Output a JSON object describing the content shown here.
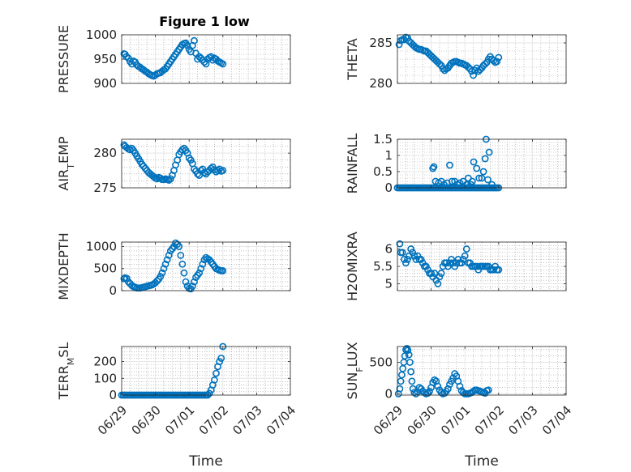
{
  "figure_title": "Figure 1 low",
  "x_ticks": [
    "06/29",
    "06/30",
    "07/01",
    "07/02",
    "07/03",
    "07/04"
  ],
  "x_label": "Time",
  "colors": {
    "marker": "#0072BD",
    "axis": "#262626",
    "grid": "#e6e6e6",
    "minorgrid": "#9a9a9a"
  },
  "chart_data": [
    {
      "type": "scatter",
      "ylabel": "PRESSURE",
      "ylabel_sub": "",
      "ylabel_post": "",
      "ylim": [
        900,
        1000
      ],
      "yticks": [
        900,
        950,
        1000
      ],
      "grid": true,
      "x": [
        0.07,
        0.1,
        0.14,
        0.2,
        0.25,
        0.3,
        0.35,
        0.4,
        0.45,
        0.5,
        0.55,
        0.6,
        0.65,
        0.7,
        0.75,
        0.8,
        0.85,
        0.9,
        0.95,
        1.0,
        1.05,
        1.1,
        1.15,
        1.2,
        1.25,
        1.3,
        1.35,
        1.4,
        1.45,
        1.5,
        1.55,
        1.6,
        1.65,
        1.7,
        1.75,
        1.8,
        1.85,
        1.9,
        1.95,
        2.0,
        2.05,
        2.1,
        2.15,
        2.2,
        2.25,
        2.3,
        2.35,
        2.4,
        2.45,
        2.5,
        2.55,
        2.6,
        2.65,
        2.7,
        2.75,
        2.8,
        2.85,
        2.9,
        2.95,
        3.0
      ],
      "y": [
        961,
        960,
        955,
        952,
        945,
        940,
        946,
        944,
        938,
        935,
        933,
        930,
        928,
        925,
        923,
        920,
        918,
        916,
        915,
        917,
        920,
        921,
        922,
        925,
        928,
        930,
        935,
        940,
        945,
        950,
        955,
        960,
        965,
        970,
        975,
        980,
        982,
        983,
        978,
        970,
        965,
        978,
        988,
        962,
        950,
        955,
        952,
        948,
        944,
        940,
        950,
        953,
        955,
        948,
        952,
        950,
        946,
        944,
        942,
        940
      ]
    },
    {
      "type": "scatter",
      "ylabel": "THETA",
      "ylabel_sub": "",
      "ylabel_post": "",
      "ylim": [
        280,
        286
      ],
      "yticks": [
        280,
        285
      ],
      "grid": true,
      "x": [
        0.05,
        0.1,
        0.15,
        0.2,
        0.25,
        0.3,
        0.35,
        0.4,
        0.45,
        0.5,
        0.55,
        0.6,
        0.65,
        0.7,
        0.75,
        0.8,
        0.85,
        0.9,
        0.95,
        1.0,
        1.05,
        1.1,
        1.15,
        1.2,
        1.25,
        1.3,
        1.35,
        1.4,
        1.45,
        1.5,
        1.55,
        1.6,
        1.65,
        1.7,
        1.75,
        1.8,
        1.85,
        1.9,
        1.95,
        2.0,
        2.05,
        2.1,
        2.15,
        2.2,
        2.25,
        2.3,
        2.35,
        2.4,
        2.45,
        2.5,
        2.55,
        2.6,
        2.65,
        2.7,
        2.75,
        2.8,
        2.85,
        2.9,
        2.95,
        3.0
      ],
      "y": [
        284.8,
        285.3,
        285.4,
        285.4,
        285.7,
        285.6,
        285.2,
        285.0,
        284.8,
        284.6,
        284.4,
        284.3,
        284.2,
        284.2,
        284.1,
        284.0,
        284.0,
        283.8,
        283.6,
        283.4,
        283.2,
        283.0,
        282.8,
        282.6,
        282.4,
        282.2,
        281.8,
        281.6,
        281.8,
        281.9,
        282.2,
        282.5,
        282.6,
        282.7,
        282.7,
        282.6,
        282.5,
        282.5,
        282.4,
        282.3,
        282.2,
        282.0,
        281.8,
        281.5,
        281.0,
        281.6,
        281.9,
        281.5,
        281.7,
        281.9,
        282.2,
        282.4,
        282.6,
        283.0,
        283.3,
        283.0,
        282.8,
        282.6,
        282.7,
        283.2
      ]
    },
    {
      "type": "scatter",
      "ylabel": "AIR",
      "ylabel_sub": "T",
      "ylabel_post": "EMP",
      "ylim": [
        275,
        282
      ],
      "yticks": [
        275,
        280
      ],
      "grid": true,
      "x": [
        0.07,
        0.1,
        0.15,
        0.2,
        0.25,
        0.3,
        0.35,
        0.4,
        0.45,
        0.5,
        0.55,
        0.6,
        0.65,
        0.7,
        0.75,
        0.8,
        0.85,
        0.9,
        0.95,
        1.0,
        1.05,
        1.1,
        1.15,
        1.2,
        1.25,
        1.3,
        1.35,
        1.4,
        1.45,
        1.5,
        1.55,
        1.6,
        1.65,
        1.7,
        1.75,
        1.8,
        1.85,
        1.9,
        1.95,
        2.0,
        2.05,
        2.1,
        2.15,
        2.2,
        2.25,
        2.3,
        2.35,
        2.4,
        2.45,
        2.5,
        2.55,
        2.6,
        2.65,
        2.7,
        2.75,
        2.8,
        2.85,
        2.9,
        2.95,
        3.0
      ],
      "y": [
        281.2,
        281.0,
        280.8,
        280.6,
        280.5,
        280.7,
        280.4,
        280.0,
        279.6,
        279.2,
        278.8,
        278.4,
        278.1,
        277.8,
        277.5,
        277.2,
        277.0,
        276.8,
        276.6,
        276.4,
        276.3,
        276.5,
        276.4,
        276.2,
        276.2,
        276.3,
        276.2,
        276.1,
        276.3,
        276.8,
        277.5,
        278.3,
        279.0,
        279.8,
        280.2,
        280.5,
        280.7,
        280.4,
        280.0,
        279.3,
        279.0,
        278.5,
        277.7,
        277.4,
        277.0,
        276.8,
        277.5,
        277.7,
        277.2,
        277.0,
        277.3,
        277.5,
        277.8,
        278.0,
        277.6,
        277.3,
        277.5,
        277.7,
        277.4,
        277.5
      ]
    },
    {
      "type": "scatter",
      "ylabel": "RAINFALL",
      "ylabel_sub": "",
      "ylabel_post": "",
      "ylim": [
        0,
        1.5
      ],
      "yticks": [
        0,
        0.5,
        1,
        1.5
      ],
      "ytick_labels": [
        "0",
        "0.5",
        "1",
        "1.5"
      ],
      "grid": true,
      "x": [
        0.0,
        0.05,
        0.1,
        0.15,
        0.2,
        0.25,
        0.3,
        0.35,
        0.4,
        0.45,
        0.5,
        0.55,
        0.6,
        0.65,
        0.7,
        0.75,
        0.8,
        0.85,
        0.9,
        0.95,
        1.0,
        1.05,
        1.1,
        1.15,
        1.2,
        1.25,
        1.3,
        1.35,
        1.4,
        1.45,
        1.5,
        1.55,
        1.6,
        1.65,
        1.7,
        1.75,
        1.8,
        1.85,
        1.9,
        1.95,
        2.0,
        2.05,
        2.1,
        2.15,
        2.2,
        2.25,
        2.3,
        2.35,
        2.4,
        2.45,
        2.5,
        2.55,
        2.6,
        2.65,
        2.7,
        2.75,
        2.8,
        2.85,
        2.9,
        2.95,
        3.0,
        1.05,
        1.08,
        1.13,
        1.22,
        1.3,
        1.38,
        1.47,
        1.55,
        1.62,
        1.7,
        1.78,
        1.85,
        1.95,
        2.05,
        2.1,
        2.18,
        2.22,
        2.26,
        2.35,
        2.42,
        2.5,
        2.55,
        2.6,
        2.63,
        2.68,
        2.72,
        2.8
      ],
      "y": [
        0,
        0,
        0,
        0,
        0,
        0,
        0,
        0,
        0,
        0,
        0,
        0,
        0,
        0,
        0,
        0,
        0,
        0,
        0,
        0,
        0,
        0,
        0,
        0,
        0,
        0,
        0,
        0,
        0,
        0,
        0,
        0,
        0,
        0,
        0,
        0,
        0,
        0,
        0,
        0,
        0,
        0,
        0,
        0,
        0,
        0,
        0,
        0,
        0,
        0,
        0,
        0,
        0,
        0,
        0,
        0,
        0,
        0,
        0,
        0,
        0,
        0.6,
        0.65,
        0.2,
        0.15,
        0.2,
        0.1,
        0.15,
        0.7,
        0.2,
        0.2,
        0.1,
        0.15,
        0.2,
        0.1,
        0.3,
        0.1,
        0.2,
        0.8,
        0.6,
        0.3,
        0.3,
        0.5,
        0.9,
        1.5,
        0.25,
        1.1,
        0.1
      ]
    },
    {
      "type": "scatter",
      "ylabel": "MIXDEPTH",
      "ylabel_sub": "",
      "ylabel_post": "",
      "ylim": [
        0,
        1100
      ],
      "yticks": [
        0,
        500,
        1000
      ],
      "grid": true,
      "x": [
        0.07,
        0.1,
        0.15,
        0.2,
        0.25,
        0.3,
        0.35,
        0.4,
        0.45,
        0.5,
        0.55,
        0.6,
        0.65,
        0.7,
        0.75,
        0.8,
        0.85,
        0.9,
        0.95,
        1.0,
        1.05,
        1.1,
        1.15,
        1.2,
        1.25,
        1.3,
        1.35,
        1.4,
        1.45,
        1.5,
        1.55,
        1.6,
        1.65,
        1.7,
        1.75,
        1.8,
        1.85,
        1.9,
        1.95,
        2.0,
        2.05,
        2.1,
        2.15,
        2.2,
        2.25,
        2.3,
        2.35,
        2.4,
        2.45,
        2.5,
        2.55,
        2.6,
        2.65,
        2.7,
        2.75,
        2.8,
        2.85,
        2.9,
        2.95,
        3.0
      ],
      "y": [
        270,
        290,
        280,
        200,
        160,
        120,
        90,
        80,
        60,
        60,
        60,
        70,
        80,
        90,
        100,
        110,
        120,
        130,
        150,
        180,
        220,
        260,
        320,
        400,
        500,
        600,
        700,
        800,
        900,
        950,
        1000,
        1080,
        1050,
        1000,
        800,
        600,
        400,
        200,
        100,
        50,
        40,
        100,
        200,
        300,
        350,
        400,
        500,
        600,
        700,
        750,
        720,
        700,
        650,
        600,
        550,
        500,
        480,
        460,
        450,
        450
      ]
    },
    {
      "type": "scatter",
      "ylabel": "H2OMIXRA",
      "ylabel_sub": "",
      "ylabel_post": "",
      "ylim": [
        4.8,
        6.2
      ],
      "yticks": [
        5,
        5.5,
        6
      ],
      "ytick_labels": [
        "5",
        "5.5",
        "6"
      ],
      "grid": true,
      "x": [
        0.07,
        0.1,
        0.15,
        0.2,
        0.25,
        0.3,
        0.35,
        0.4,
        0.45,
        0.5,
        0.55,
        0.6,
        0.65,
        0.7,
        0.75,
        0.8,
        0.85,
        0.9,
        0.95,
        1.0,
        1.05,
        1.1,
        1.15,
        1.2,
        1.25,
        1.3,
        1.35,
        1.4,
        1.45,
        1.5,
        1.55,
        1.6,
        1.65,
        1.7,
        1.75,
        1.8,
        1.85,
        1.9,
        1.95,
        2.0,
        2.05,
        2.1,
        2.15,
        2.2,
        2.25,
        2.3,
        2.35,
        2.4,
        2.45,
        2.5,
        2.55,
        2.6,
        2.65,
        2.7,
        2.75,
        2.8,
        2.85,
        2.9,
        2.95,
        3.0
      ],
      "y": [
        6.15,
        5.9,
        5.9,
        5.7,
        5.6,
        5.7,
        5.8,
        6.0,
        5.9,
        5.8,
        5.7,
        5.8,
        5.7,
        5.7,
        5.6,
        5.5,
        5.5,
        5.4,
        5.3,
        5.3,
        5.2,
        5.3,
        5.1,
        5.0,
        5.2,
        5.3,
        5.5,
        5.6,
        5.6,
        5.5,
        5.6,
        5.7,
        5.6,
        5.5,
        5.6,
        5.7,
        5.6,
        5.6,
        5.7,
        5.8,
        6.0,
        5.6,
        5.6,
        5.5,
        5.5,
        5.5,
        5.5,
        5.4,
        5.5,
        5.5,
        5.5,
        5.5,
        5.5,
        5.5,
        5.4,
        5.4,
        5.4,
        5.5,
        5.4,
        5.4
      ]
    },
    {
      "type": "scatter",
      "ylabel": "TERR",
      "ylabel_sub": "M",
      "ylabel_post": "SL",
      "ylim": [
        0,
        290
      ],
      "yticks": [
        0,
        100,
        200
      ],
      "grid": true,
      "x": [
        0.0,
        0.05,
        0.1,
        0.15,
        0.2,
        0.25,
        0.3,
        0.35,
        0.4,
        0.45,
        0.5,
        0.55,
        0.6,
        0.65,
        0.7,
        0.75,
        0.8,
        0.85,
        0.9,
        0.95,
        1.0,
        1.05,
        1.1,
        1.15,
        1.2,
        1.25,
        1.3,
        1.35,
        1.4,
        1.45,
        1.5,
        1.55,
        1.6,
        1.65,
        1.7,
        1.75,
        1.8,
        1.85,
        1.9,
        1.95,
        2.0,
        2.05,
        2.1,
        2.15,
        2.2,
        2.25,
        2.3,
        2.35,
        2.4,
        2.45,
        2.5,
        2.55,
        2.6,
        2.65,
        2.7,
        2.75,
        2.8,
        2.85,
        2.9,
        2.95,
        3.0
      ],
      "y": [
        0,
        0,
        0,
        0,
        0,
        0,
        0,
        0,
        0,
        0,
        0,
        0,
        0,
        0,
        0,
        0,
        0,
        0,
        0,
        0,
        0,
        0,
        0,
        0,
        0,
        0,
        0,
        0,
        0,
        0,
        0,
        0,
        0,
        0,
        0,
        0,
        0,
        0,
        0,
        0,
        0,
        0,
        0,
        0,
        0,
        0,
        0,
        0,
        0,
        0,
        0,
        0,
        10,
        30,
        60,
        90,
        130,
        170,
        200,
        220,
        290
      ]
    },
    {
      "type": "scatter",
      "ylabel": "SUN",
      "ylabel_sub": "F",
      "ylabel_post": "LUX",
      "ylim": [
        -20,
        750
      ],
      "yticks": [
        0,
        500
      ],
      "grid": true,
      "x": [
        0.03,
        0.07,
        0.1,
        0.13,
        0.16,
        0.19,
        0.22,
        0.25,
        0.28,
        0.31,
        0.34,
        0.37,
        0.4,
        0.43,
        0.46,
        0.5,
        0.55,
        0.6,
        0.65,
        0.7,
        0.75,
        0.8,
        0.85,
        0.9,
        0.95,
        1.0,
        1.05,
        1.1,
        1.15,
        1.2,
        1.25,
        1.3,
        1.35,
        1.4,
        1.45,
        1.5,
        1.55,
        1.6,
        1.65,
        1.7,
        1.75,
        1.8,
        1.85,
        1.9,
        1.95,
        2.0,
        2.05,
        2.1,
        2.15,
        2.2,
        2.25,
        2.3,
        2.35,
        2.4,
        2.45,
        2.5,
        2.55,
        2.6,
        2.65,
        2.7
      ],
      "y": [
        0,
        80,
        200,
        300,
        400,
        500,
        600,
        700,
        720,
        690,
        620,
        500,
        350,
        200,
        80,
        20,
        0,
        30,
        100,
        80,
        40,
        20,
        0,
        10,
        40,
        100,
        180,
        220,
        200,
        120,
        60,
        20,
        0,
        10,
        40,
        80,
        150,
        200,
        250,
        320,
        280,
        200,
        120,
        50,
        20,
        0,
        0,
        0,
        10,
        20,
        40,
        60,
        60,
        50,
        40,
        30,
        20,
        10,
        50,
        60
      ]
    }
  ]
}
